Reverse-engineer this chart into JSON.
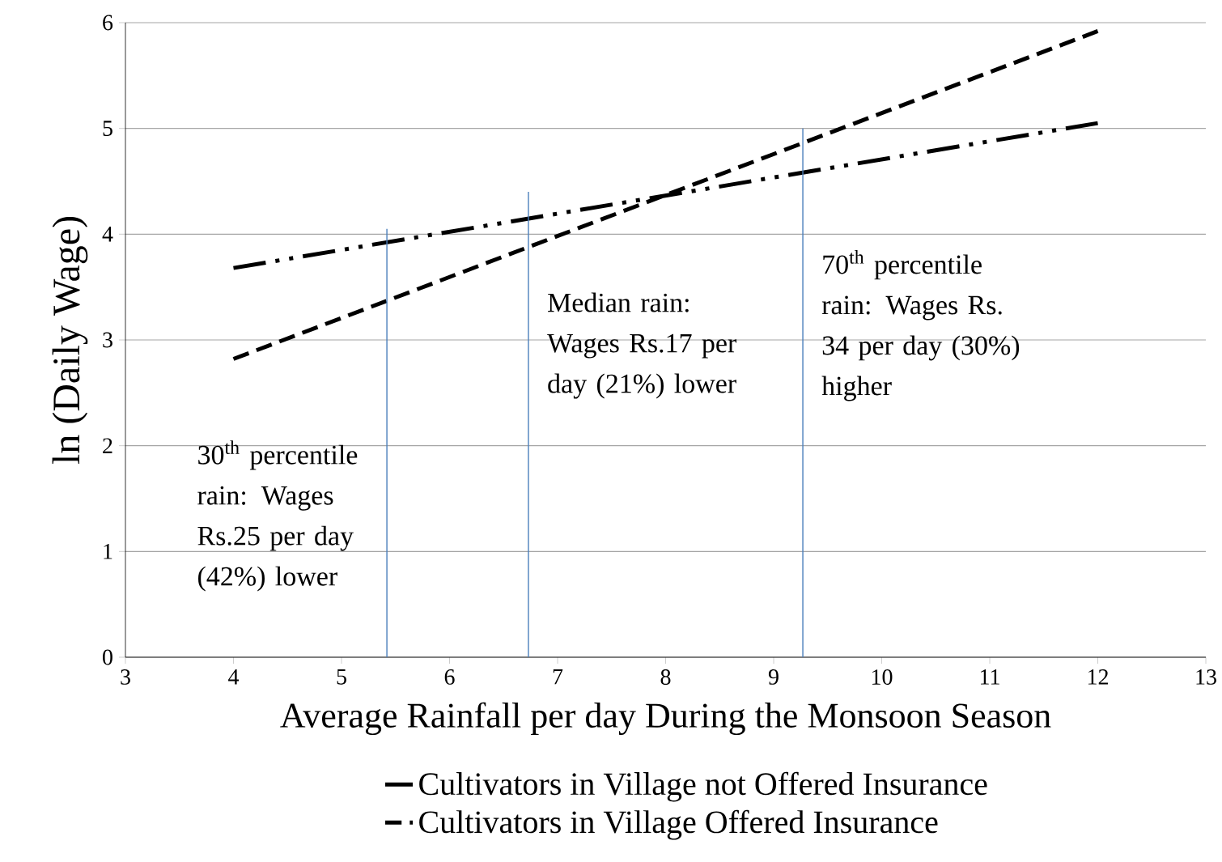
{
  "chart_data": {
    "type": "line",
    "xlabel": "Average Rainfall per day During the Monsoon Season",
    "ylabel": "ln (Daily Wage)",
    "xlim": [
      3,
      13
    ],
    "xticks": [
      3,
      4,
      5,
      6,
      7,
      8,
      9,
      10,
      11,
      12,
      13
    ],
    "ylim": [
      0,
      6
    ],
    "yticks": [
      0,
      1,
      2,
      3,
      4,
      5,
      6
    ],
    "grid": "y",
    "legend": "bottom",
    "marker": "none",
    "series": [
      {
        "name": "Cultivators in Village not Offered Insurance",
        "color": "#000000",
        "line_style": "dashdotdot",
        "x": [
          4,
          12
        ],
        "values": [
          3.68,
          5.05
        ]
      },
      {
        "name": "Cultivators in Village Offered Insurance",
        "color": "#000000",
        "line_style": "dashed",
        "x": [
          4,
          12
        ],
        "values": [
          2.82,
          5.92
        ]
      },
      {
        "color": "#4a7ebb",
        "line_style": "solid",
        "x": [
          5.42,
          5.42
        ],
        "values": [
          0,
          4.05
        ]
      },
      {
        "color": "#4a7ebb",
        "line_style": "solid",
        "x": [
          6.73,
          6.73
        ],
        "values": [
          0,
          4.4
        ]
      },
      {
        "color": "#4a7ebb",
        "line_style": "solid",
        "x": [
          9.27,
          9.27
        ],
        "values": [
          0,
          5.0
        ]
      }
    ],
    "annotations": [
      "30$^{th}$ percentile rain: Wages Rs.25 per day (42%) lower",
      "Median rain: Wages Rs.17 per day (21%) lower",
      "70$^{th}$ percentile rain: Wages  Rs. 34 per day (30%) higher"
    ]
  }
}
